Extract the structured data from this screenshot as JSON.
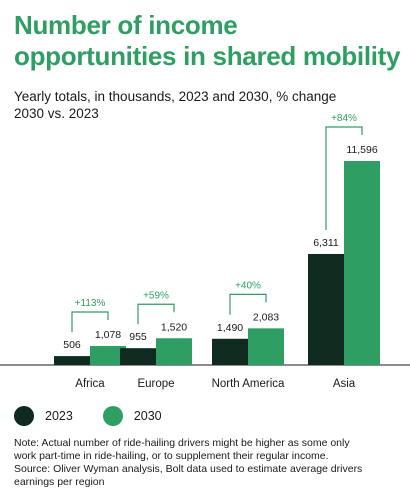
{
  "title_line1": "Number of income",
  "title_line2": "opportunities in shared mobility",
  "subtitle_line1": "Yearly totals, in thousands, 2023 and 2030, % change",
  "subtitle_line2": "2030 vs. 2023",
  "note_lines": [
    "Note: Actual number of ride-hailing drivers might be higher as some only",
    "work part-time in ride-hailing, or to supplement their regular income.",
    "Source: Oliver Wyman analysis, Bolt data used to estimate average drivers",
    "earnings per region"
  ],
  "colors": {
    "title": "#2f9e62",
    "s2023": "#0f2b1f",
    "s2030": "#2f9e62",
    "bracket": "#2f9e62"
  },
  "chart_data": {
    "type": "bar",
    "categories": [
      "Africa",
      "Europe",
      "North America",
      "Asia"
    ],
    "series": [
      {
        "name": "2023",
        "values": [
          506,
          955,
          1490,
          6311
        ],
        "labels": [
          "506",
          "955",
          "1,490",
          "6,311"
        ]
      },
      {
        "name": "2030",
        "values": [
          1078,
          1520,
          2083,
          11596
        ],
        "labels": [
          "1,078",
          "1,520",
          "2,083",
          "11,596"
        ]
      }
    ],
    "changes": [
      "+113%",
      "+59%",
      "+40%",
      "+84%"
    ],
    "legend_position": "bottom-left",
    "grid": false
  }
}
